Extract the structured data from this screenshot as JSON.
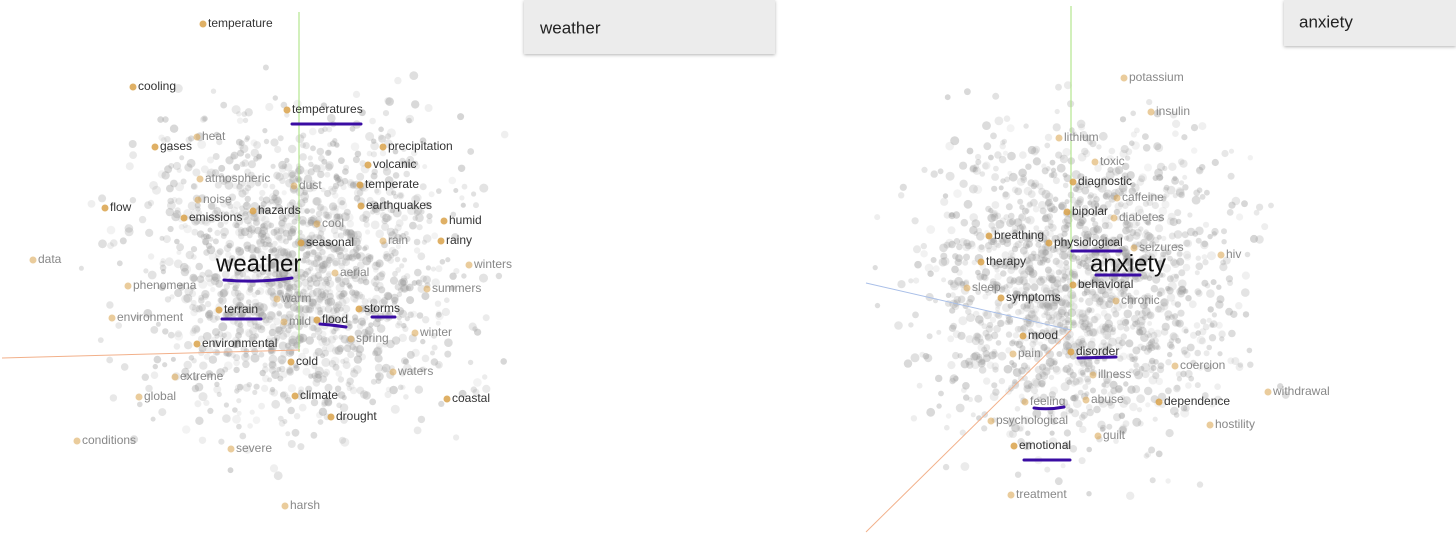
{
  "panels": [
    {
      "search": "weather",
      "words": [
        "temperature",
        "cooling",
        "temperatures",
        "heat",
        "gases",
        "precipitation",
        "volcanic",
        "atmospheric",
        "dust",
        "temperate",
        "noise",
        "flow",
        "hazards",
        "earthquakes",
        "emissions",
        "humid",
        "cool",
        "seasonal",
        "rain",
        "rainy",
        "data",
        "weather",
        "winters",
        "aerial",
        "phenomena",
        "summers",
        "warm",
        "terrain",
        "storms",
        "environment",
        "mild",
        "flood",
        "winter",
        "spring",
        "environmental",
        "cold",
        "waters",
        "extreme",
        "global",
        "climate",
        "coastal",
        "drought",
        "conditions",
        "severe",
        "harsh"
      ]
    },
    {
      "search": "anxiety",
      "words": [
        "potassium",
        "insulin",
        "lithium",
        "toxic",
        "diagnostic",
        "caffeine",
        "bipolar",
        "diabetes",
        "breathing",
        "physiological",
        "seizures",
        "hiv",
        "therapy",
        "anxiety",
        "sleep",
        "symptoms",
        "behavioral",
        "chronic",
        "mood",
        "pain",
        "disorder",
        "coercion",
        "illness",
        "withdrawal",
        "abuse",
        "dependence",
        "feeling",
        "hostility",
        "psychological",
        "guilt",
        "emotional",
        "treatment"
      ]
    }
  ]
}
